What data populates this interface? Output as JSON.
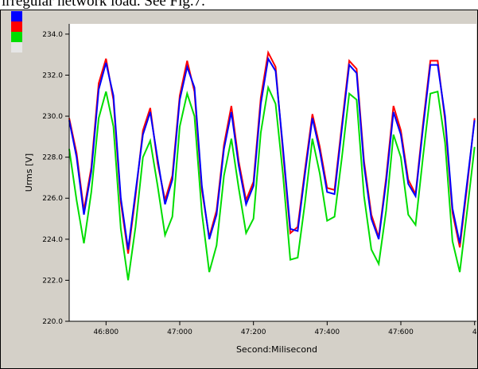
{
  "caption": {
    "text": "irregular network load. See Fig.7."
  },
  "legend": {
    "swatches": [
      {
        "color": "#0000ff"
      },
      {
        "color": "#ff0000"
      },
      {
        "color": "#00dd00"
      },
      {
        "color": "#e6e6e6"
      }
    ]
  },
  "chart_data": {
    "type": "line",
    "ylabel": "Urms [V]",
    "xlabel": "Second:Milisecond",
    "ylim": [
      220.0,
      234.5
    ],
    "y_ticks": [
      220.0,
      222.0,
      224.0,
      226.0,
      228.0,
      230.0,
      232.0,
      234.0
    ],
    "y_tick_labels": [
      "220.0",
      "222.0",
      "224.0",
      "226.0",
      "228.0",
      "230.0",
      "232.0",
      "234.0"
    ],
    "xlim": [
      46.7,
      47.805
    ],
    "x_ticks": [
      46.8,
      47.0,
      47.2,
      47.4,
      47.6,
      47.8
    ],
    "x_tick_labels": [
      "46:800",
      "47:000",
      "47:200",
      "47:400",
      "47:600",
      "4"
    ],
    "grid": false,
    "x": [
      46.7,
      46.72,
      46.74,
      46.76,
      46.78,
      46.8,
      46.82,
      46.84,
      46.86,
      46.88,
      46.9,
      46.92,
      46.94,
      46.96,
      46.98,
      47.0,
      47.02,
      47.04,
      47.06,
      47.08,
      47.1,
      47.12,
      47.14,
      47.16,
      47.18,
      47.2,
      47.22,
      47.24,
      47.26,
      47.28,
      47.3,
      47.32,
      47.34,
      47.36,
      47.38,
      47.4,
      47.42,
      47.44,
      47.46,
      47.48,
      47.5,
      47.52,
      47.54,
      47.56,
      47.58,
      47.6,
      47.62,
      47.64,
      47.66,
      47.68,
      47.7,
      47.72,
      47.74,
      47.76,
      47.78,
      47.8
    ],
    "series": [
      {
        "color": "#0000ff",
        "values": [
          229.8,
          228.0,
          225.2,
          227.3,
          231.3,
          232.6,
          231.0,
          226.0,
          223.5,
          226.3,
          229.1,
          230.2,
          227.9,
          225.7,
          226.9,
          230.8,
          232.4,
          231.4,
          226.6,
          224.0,
          225.2,
          228.4,
          230.2,
          227.6,
          225.7,
          226.6,
          230.6,
          232.8,
          232.2,
          228.5,
          224.5,
          224.4,
          227.2,
          229.9,
          228.3,
          226.3,
          226.2,
          229.4,
          232.5,
          232.1,
          227.6,
          225.0,
          224.0,
          226.8,
          230.2,
          229.1,
          226.7,
          226.1,
          229.4,
          232.5,
          232.5,
          230.0,
          225.5,
          223.8,
          226.8,
          229.8
        ]
      },
      {
        "color": "#ff0000",
        "values": [
          229.9,
          228.2,
          225.4,
          227.5,
          231.6,
          232.8,
          230.8,
          225.8,
          223.3,
          226.1,
          229.3,
          230.4,
          227.7,
          225.9,
          227.1,
          231.0,
          232.7,
          231.2,
          226.4,
          224.1,
          225.4,
          228.6,
          230.5,
          227.8,
          225.9,
          226.8,
          230.9,
          233.1,
          232.4,
          228.3,
          224.3,
          224.6,
          227.4,
          230.1,
          228.5,
          226.5,
          226.4,
          229.6,
          232.7,
          232.3,
          227.8,
          225.2,
          224.1,
          227.0,
          230.5,
          229.3,
          226.9,
          226.2,
          229.6,
          232.7,
          232.7,
          229.8,
          225.3,
          223.6,
          226.6,
          229.9
        ]
      },
      {
        "color": "#00dd00",
        "values": [
          228.4,
          225.9,
          223.8,
          226.3,
          229.9,
          231.2,
          229.5,
          224.5,
          222.0,
          224.6,
          228.0,
          228.8,
          226.6,
          224.2,
          225.1,
          229.5,
          231.1,
          230.0,
          225.3,
          222.4,
          223.7,
          227.1,
          228.9,
          226.5,
          224.3,
          225.0,
          229.2,
          231.4,
          230.6,
          227.2,
          223.0,
          223.1,
          225.8,
          228.9,
          227.2,
          224.9,
          225.1,
          228.0,
          231.1,
          230.8,
          226.1,
          223.5,
          222.8,
          225.4,
          229.1,
          228.0,
          225.2,
          224.7,
          228.0,
          231.1,
          231.2,
          228.7,
          223.9,
          222.4,
          225.4,
          228.5
        ]
      }
    ]
  }
}
